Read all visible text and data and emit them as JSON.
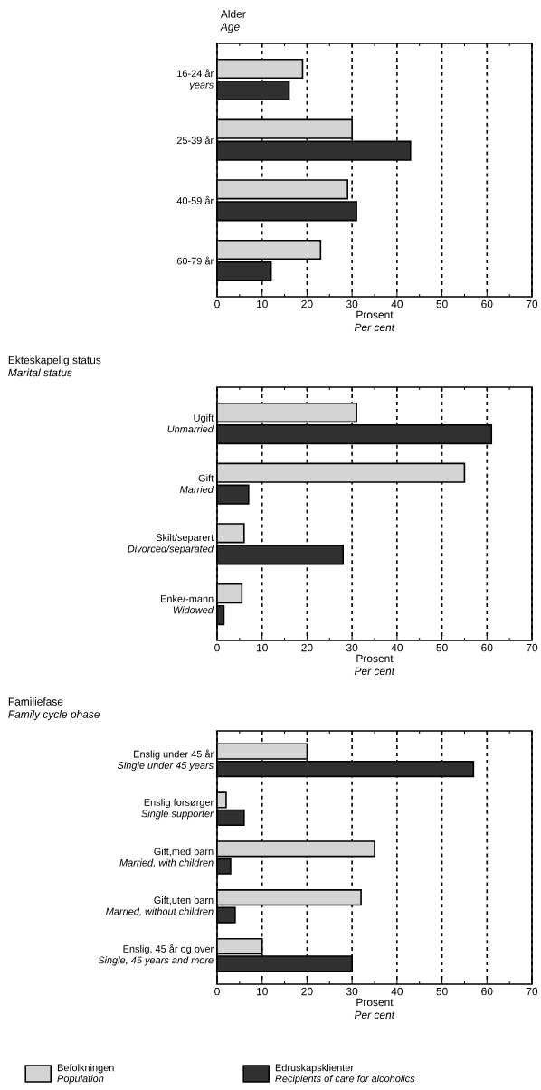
{
  "chart_data": [
    {
      "type": "bar",
      "orientation": "horizontal",
      "title": "Alder *Age*",
      "xlabel": "Prosent *Per cent*",
      "categories": [
        "16-24 år *years*",
        "25-39 år",
        "40-59 år",
        "60-79 år"
      ],
      "series": [
        {
          "color": "#d4d4d4",
          "values": [
            19,
            30,
            29,
            23
          ]
        },
        {
          "color": "#303030",
          "values": [
            16,
            43,
            31,
            12
          ]
        }
      ],
      "xlim": [
        0,
        70
      ],
      "xticks": [
        0,
        10,
        20,
        30,
        40,
        50,
        60,
        70
      ],
      "grid": "x"
    },
    {
      "type": "bar",
      "orientation": "horizontal",
      "title": "Ekteskapelig status *Marital status*",
      "xlabel": "Prosent *Per cent*",
      "categories": [
        "Ugift *Unmarried*",
        "Gift *Married*",
        "Skilt/separert *Divorced/separated*",
        "Enke/-mann *Widowed*"
      ],
      "series": [
        {
          "color": "#d4d4d4",
          "values": [
            31,
            55,
            6,
            5.5
          ]
        },
        {
          "color": "#303030",
          "values": [
            61,
            7,
            28,
            1.5
          ]
        }
      ],
      "xlim": [
        0,
        70
      ],
      "xticks": [
        0,
        10,
        20,
        30,
        40,
        50,
        60,
        70
      ],
      "grid": "x"
    },
    {
      "type": "bar",
      "orientation": "horizontal",
      "title": "Familiefase *Family cycle phase*",
      "xlabel": "Prosent *Per cent*",
      "categories": [
        "Enslig under 45 år *Single under 45 years*",
        "Enslig forsørger *Single supporter*",
        "Gift,med barn *Married, with children*",
        "Gift,uten barn *Married, without children*",
        "Enslig, 45 år og over *Single, 45 years and more*"
      ],
      "series": [
        {
          "name": "Befolkningen *Population*",
          "color": "#d4d4d4",
          "values": [
            20,
            2,
            35,
            32,
            10
          ]
        },
        {
          "name": "Edruskapsklienter *Recipients of care for alcoholics*",
          "color": "#303030",
          "values": [
            57,
            6,
            3,
            4,
            30
          ]
        }
      ],
      "xlim": [
        0,
        70
      ],
      "xticks": [
        0,
        10,
        20,
        30,
        40,
        50,
        60,
        70
      ],
      "grid": "x",
      "legend": "bottom"
    }
  ]
}
